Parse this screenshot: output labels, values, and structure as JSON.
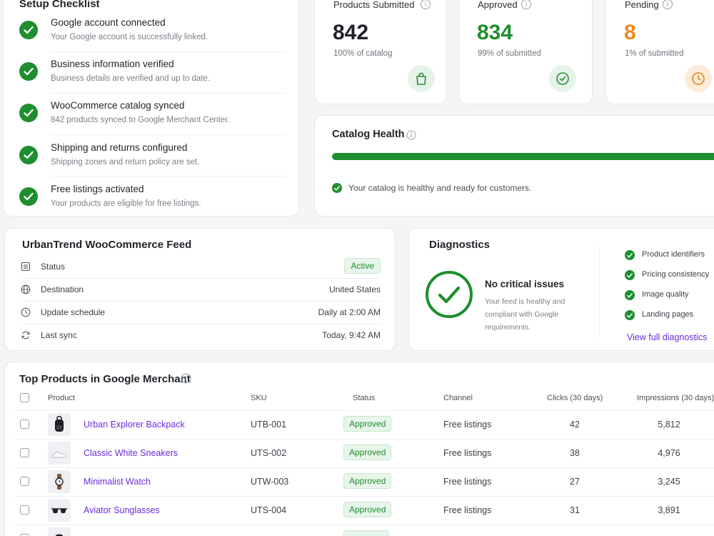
{
  "setup": {
    "title": "Setup Checklist",
    "items": [
      {
        "title": "Google account connected",
        "desc": "Your Google account is successfully linked."
      },
      {
        "title": "Business information verified",
        "desc": "Business details are verified and up to date."
      },
      {
        "title": "WooCommerce catalog synced",
        "desc": "842 products synced to Google Merchant Center."
      },
      {
        "title": "Shipping and returns configured",
        "desc": "Shipping zones and return policy are set."
      },
      {
        "title": "Free listings activated",
        "desc": "Your products are eligible for free listings."
      }
    ]
  },
  "stats": [
    {
      "label": "Products Submitted",
      "value": "842",
      "sub": "100% of catalog",
      "color": "#1f2328",
      "icon": "shopping-bag-icon"
    },
    {
      "label": "Approved",
      "value": "834",
      "sub": "99% of submitted",
      "color": "#1e8e2e",
      "icon": "check-circle-icon"
    },
    {
      "label": "Pending",
      "value": "8",
      "sub": "1% of submitted",
      "color": "#f08a1c",
      "icon": "clock-icon"
    }
  ],
  "health": {
    "title": "Catalog Health",
    "progress": 0.99,
    "message": "Your catalog is healthy and ready for customers."
  },
  "feed": {
    "title": "UrbanTrend WooCommerce Feed",
    "rows": [
      {
        "key": "Status",
        "value": "Active",
        "icon": "list-icon"
      },
      {
        "key": "Destination",
        "value": "United States",
        "icon": "globe-icon"
      },
      {
        "key": "Update schedule",
        "value": "Daily at 2:00 AM",
        "icon": "clock-icon"
      },
      {
        "key": "Last sync",
        "value": "Today, 9:42 AM",
        "icon": "refresh-icon"
      }
    ]
  },
  "diagnostics": {
    "title": "Diagnostics",
    "headline": "No critical issues",
    "description": "Your feed is healthy and compliant with Google requirements.",
    "checks": [
      "Product identifiers",
      "Pricing consistency",
      "Image quality",
      "Landing pages"
    ],
    "link": "View full diagnostics"
  },
  "products": {
    "title": "Top Products in Google Merchant",
    "columns": [
      "Product",
      "SKU",
      "Status",
      "Channel",
      "Clicks (30 days)",
      "Impressions (30 days)"
    ],
    "rows": [
      {
        "name": "Urban Explorer Backpack",
        "sku": "UTB-001",
        "status": "Approved",
        "channel": "Free listings",
        "clicks": "42",
        "impressions": "5,812",
        "thumb": "backpack-icon"
      },
      {
        "name": "Classic White Sneakers",
        "sku": "UTS-002",
        "status": "Approved",
        "channel": "Free listings",
        "clicks": "38",
        "impressions": "4,976",
        "thumb": "sneaker-icon"
      },
      {
        "name": "Minimalist Watch",
        "sku": "UTW-003",
        "status": "Approved",
        "channel": "Free listings",
        "clicks": "27",
        "impressions": "3,245",
        "thumb": "watch-icon"
      },
      {
        "name": "Aviator Sunglasses",
        "sku": "UTS-004",
        "status": "Approved",
        "channel": "Free listings",
        "clicks": "31",
        "impressions": "3,891",
        "thumb": "sunglasses-icon"
      }
    ]
  }
}
